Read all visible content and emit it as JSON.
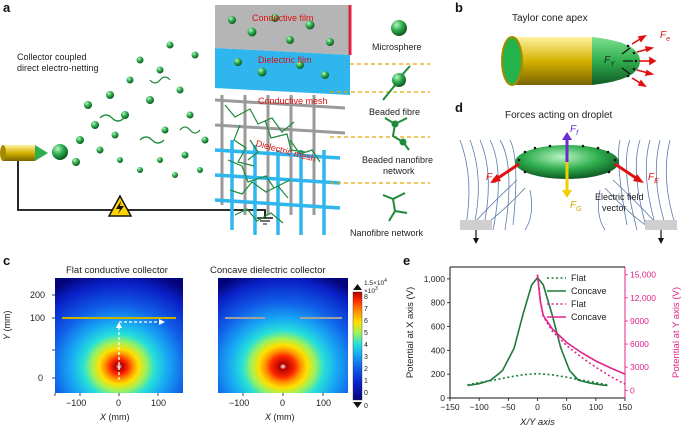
{
  "panels": {
    "a": "a",
    "b": "b",
    "c": "c",
    "d": "d",
    "e": "e"
  },
  "panel_a": {
    "collector_title_line1": "Collector coupled",
    "collector_title_line2": "direct electro-netting",
    "layers": {
      "conductive_film": "Conductive film",
      "dielectric_film": "Dielectric film",
      "conductive_mesh": "Conductive mesh",
      "dielectric_mesh": "Dielectric mesh"
    },
    "legend": {
      "microsphere": "Microsphere",
      "beaded_fibre": "Beaded fibre",
      "beaded_nanofibre_line1": "Beaded nanofibre",
      "beaded_nanofibre_line2": "network",
      "nanofibre_network": "Nanofibre network"
    }
  },
  "panel_b": {
    "title": "Taylor cone apex",
    "fe_main": "F",
    "fe_sub": "e",
    "fy_main": "F",
    "fy_sub": "Y"
  },
  "panel_d": {
    "title": "Forces acting on droplet",
    "ff_main": "F",
    "ff_sub": "f",
    "fe_main": "F",
    "fe_sub": "E",
    "fg_main": "F",
    "fg_sub": "G",
    "field_line1": "Electric field",
    "field_line2": "vector"
  },
  "panel_c": {
    "left_title": "Flat conductive collector",
    "right_title": "Concave dielectric collector",
    "y_label": "Y",
    "y_unit": " (mm)",
    "x_label": "X",
    "x_unit": " (mm)",
    "y_ticks": [
      "0",
      "100",
      "200"
    ],
    "x_ticks": [
      "−100",
      "0",
      "100"
    ],
    "colorbar_top": "1.5×10",
    "colorbar_top_exp": "4",
    "colorbar_mult": "×10",
    "colorbar_mult_exp": "3",
    "colorbar_ticks": [
      "8",
      "7",
      "6",
      "5",
      "4",
      "3",
      "2",
      "1",
      "0"
    ],
    "colorbar_bottom": "0"
  },
  "chart_data": {
    "type": "line",
    "title": "",
    "xlabel": "X/Y axis",
    "ylabel_left": "Potential at X axis (V)",
    "ylabel_right": "Potential at Y axis (V)",
    "x_ticks": [
      "−150",
      "−100",
      "−50",
      "0",
      "50",
      "100",
      "150"
    ],
    "xlim": [
      -150,
      150
    ],
    "ylim_left": [
      0,
      1100
    ],
    "ylim_right": [
      -1000,
      16000
    ],
    "y_ticks_left": [
      "0",
      "200",
      "400",
      "600",
      "800",
      "1,000"
    ],
    "y_ticks_right": [
      "0",
      "3000",
      "6000",
      "9000",
      "12,000",
      "15,000"
    ],
    "legend": [
      "Flat",
      "Concave",
      "Flat",
      "Concave"
    ],
    "series": [
      {
        "name": "Flat",
        "axis": "left",
        "style": "dotted",
        "color": "#1e7a3c",
        "x": [
          -120,
          -100,
          -75,
          -50,
          -25,
          0,
          25,
          50,
          75,
          100,
          120
        ],
        "y": [
          110,
          130,
          150,
          175,
          195,
          205,
          195,
          175,
          150,
          130,
          110
        ]
      },
      {
        "name": "Concave",
        "axis": "left",
        "style": "solid",
        "color": "#1e7a3c",
        "x": [
          -120,
          -100,
          -80,
          -60,
          -40,
          -25,
          -10,
          0,
          10,
          25,
          40,
          55,
          70,
          90,
          110,
          120
        ],
        "y": [
          105,
          120,
          150,
          230,
          420,
          700,
          950,
          1010,
          950,
          700,
          420,
          230,
          150,
          125,
          110,
          105
        ]
      },
      {
        "name": "Flat",
        "axis": "right",
        "style": "dotted",
        "color": "#e0248a",
        "x": [
          0,
          5,
          10,
          25,
          50,
          75,
          100,
          125,
          150
        ],
        "y": [
          15000,
          11500,
          9600,
          7700,
          5800,
          4300,
          3000,
          1800,
          800
        ]
      },
      {
        "name": "Concave",
        "axis": "right",
        "style": "solid",
        "color": "#e0248a",
        "x": [
          0,
          5,
          10,
          25,
          50,
          75,
          100,
          125,
          150
        ],
        "y": [
          15000,
          11500,
          9700,
          8000,
          6200,
          4900,
          3800,
          2900,
          2100
        ]
      }
    ]
  }
}
